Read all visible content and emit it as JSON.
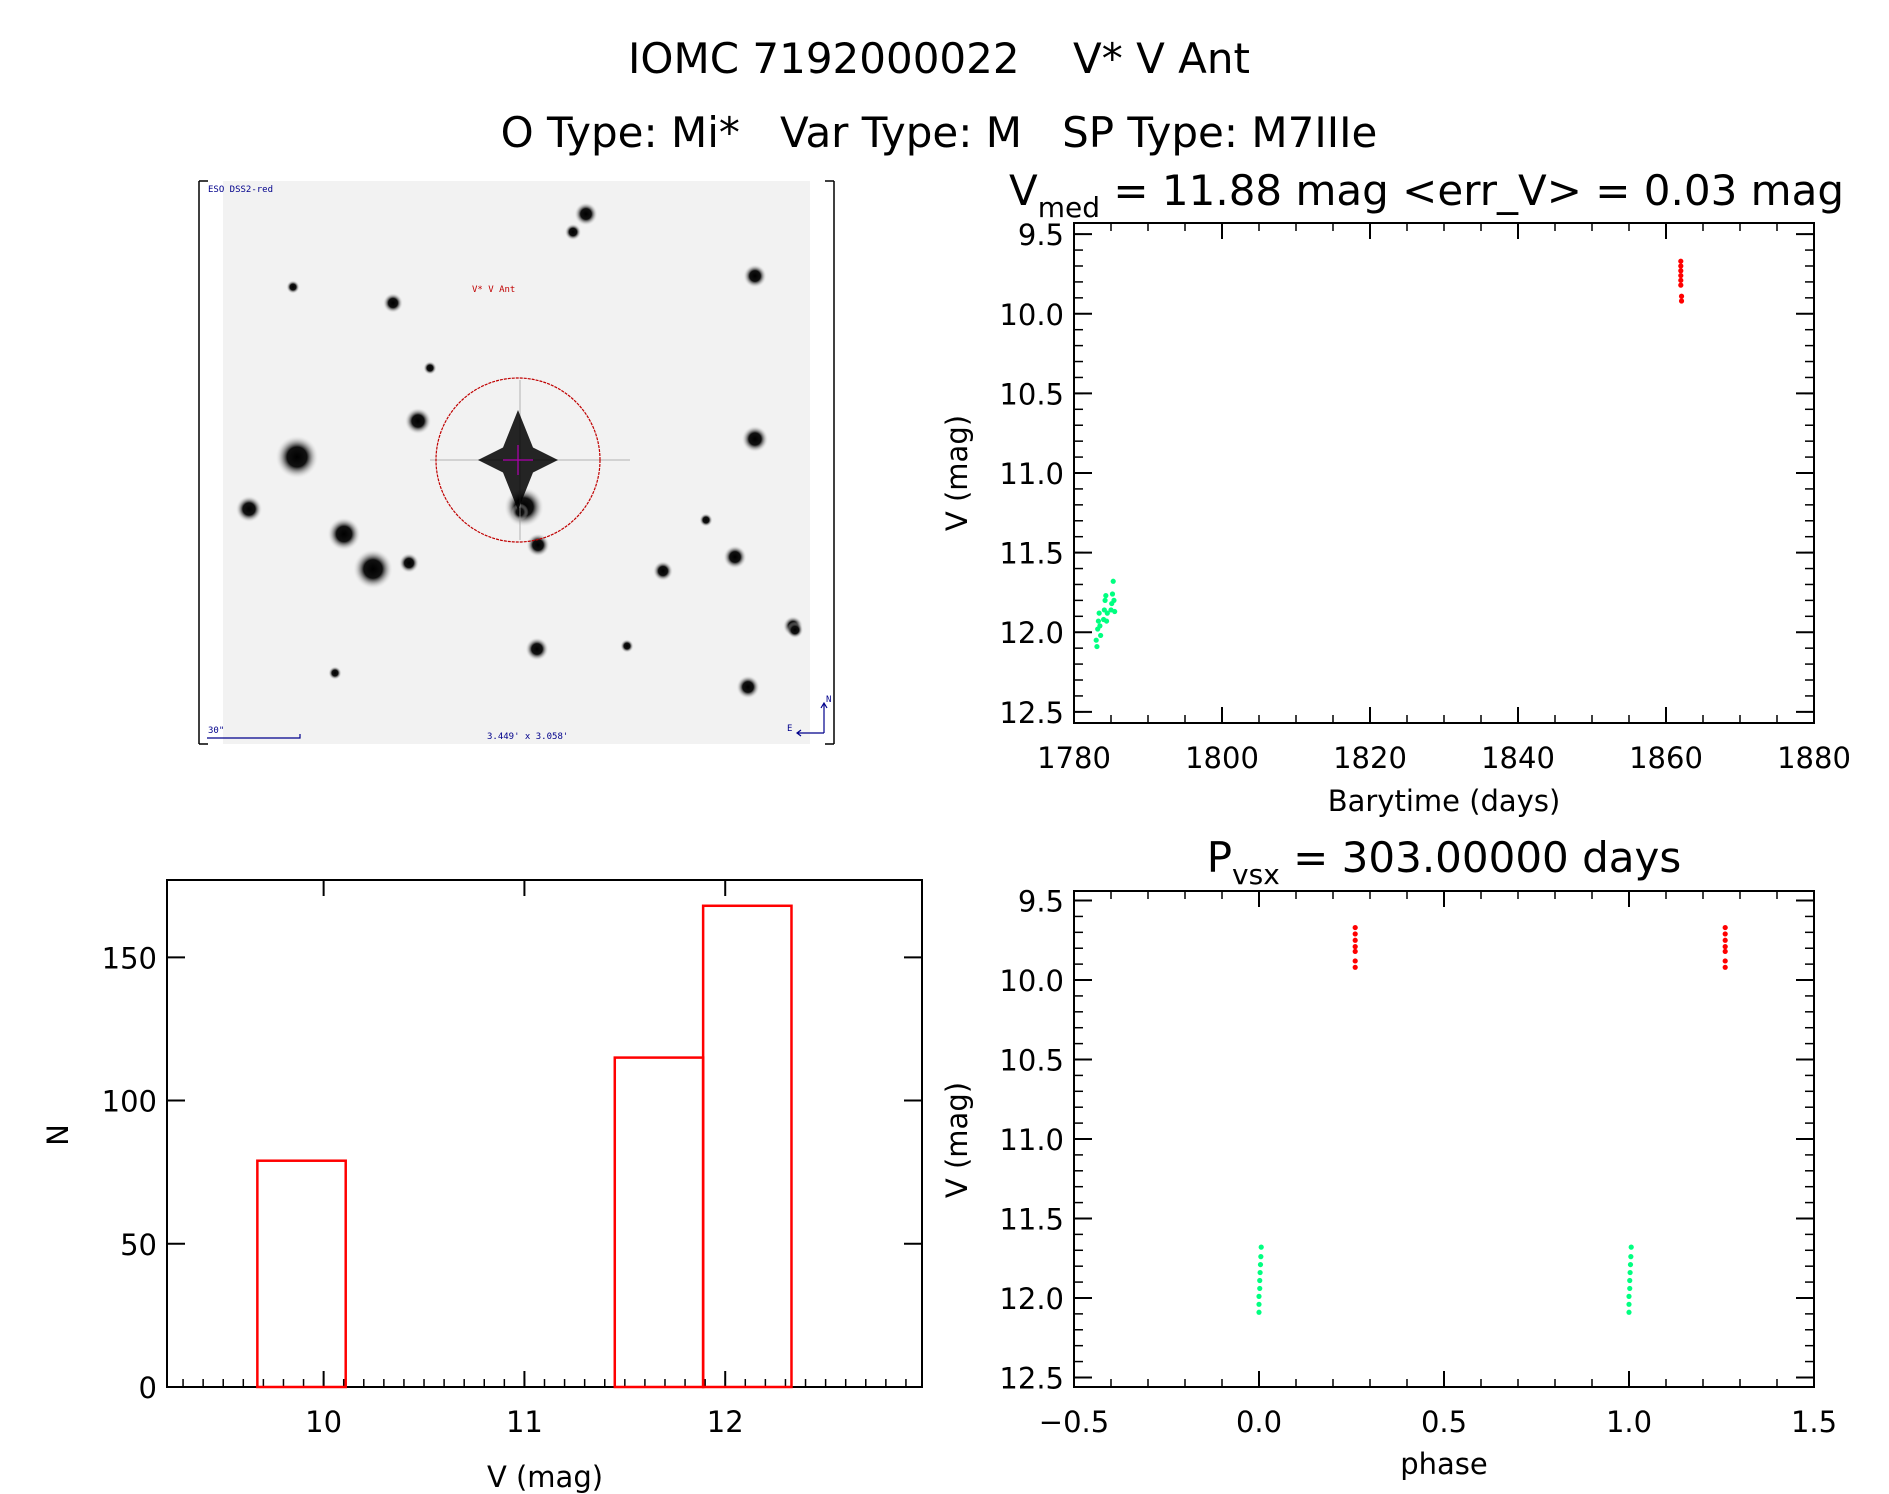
{
  "header": {
    "line1": "IOMC 7192000022    V* V Ant",
    "line2": "O Type: Mi*   Var Type: M   SP Type: M7IIIe"
  },
  "finder_image": {
    "survey": "ESO DSS2-red",
    "target_label": "V* V Ant",
    "scale_label": "30\"",
    "field_size": "3.449' x 3.058'",
    "north_label": "N",
    "east_label": "E",
    "circle_color": "#c00000",
    "text_color": "#00008b"
  },
  "chart_data": [
    {
      "id": "lightcurve",
      "type": "scatter",
      "title_main": "V",
      "title_sub": "med",
      "title_rest": " = 11.88 mag <err_V> = 0.03 mag",
      "xlabel": "Barytime (days)",
      "ylabel": "V (mag)",
      "xlim": [
        1780,
        1880
      ],
      "ylim": [
        12.57,
        9.43
      ],
      "y_reversed": true,
      "xticks": [
        1780,
        1800,
        1820,
        1840,
        1860,
        1880
      ],
      "yticks": [
        "9.5",
        "10.0",
        "10.5",
        "11.0",
        "11.5",
        "12.0",
        "12.5"
      ],
      "grid": false,
      "series": [
        {
          "color": "#00ff80",
          "points": [
            [
              1783.0,
              12.05
            ],
            [
              1783.1,
              12.09
            ],
            [
              1783.2,
              11.98
            ],
            [
              1783.3,
              11.93
            ],
            [
              1783.4,
              11.88
            ],
            [
              1783.5,
              11.96
            ],
            [
              1783.6,
              12.02
            ],
            [
              1784.0,
              11.92
            ],
            [
              1784.1,
              11.86
            ],
            [
              1784.2,
              11.8
            ],
            [
              1784.3,
              11.77
            ],
            [
              1784.4,
              11.93
            ],
            [
              1784.5,
              11.88
            ],
            [
              1785.0,
              11.86
            ],
            [
              1785.1,
              11.82
            ],
            [
              1785.2,
              11.76
            ],
            [
              1785.3,
              11.68
            ],
            [
              1785.4,
              11.8
            ],
            [
              1785.5,
              11.87
            ]
          ]
        },
        {
          "color": "#ff0000",
          "points": [
            [
              1862.0,
              9.67
            ],
            [
              1862.0,
              9.7
            ],
            [
              1862.0,
              9.73
            ],
            [
              1862.0,
              9.76
            ],
            [
              1862.0,
              9.79
            ],
            [
              1862.0,
              9.82
            ],
            [
              1862.1,
              9.89
            ],
            [
              1862.1,
              9.92
            ]
          ]
        }
      ]
    },
    {
      "id": "histogram",
      "type": "bar",
      "xlabel": "V (mag)",
      "ylabel": "N",
      "xlim": [
        9.22,
        12.98
      ],
      "ylim": [
        0,
        177
      ],
      "xticks": [
        10,
        11,
        12
      ],
      "yticks": [
        0,
        50,
        100,
        150
      ],
      "bins": [
        {
          "from": 9.67,
          "to": 10.11,
          "count": 79
        },
        {
          "from": 10.11,
          "to": 10.55,
          "count": 0
        },
        {
          "from": 10.55,
          "to": 11.0,
          "count": 0
        },
        {
          "from": 11.0,
          "to": 11.45,
          "count": 0
        },
        {
          "from": 11.45,
          "to": 11.89,
          "count": 115
        },
        {
          "from": 11.89,
          "to": 12.33,
          "count": 168
        }
      ],
      "color": "#ff0000",
      "grid": false
    },
    {
      "id": "phased",
      "type": "scatter",
      "title_main": "P",
      "title_sub": "vsx",
      "title_rest": " = 303.00000 days",
      "xlabel": "phase",
      "ylabel": "V (mag)",
      "xlim": [
        -0.5,
        1.5
      ],
      "ylim": [
        12.56,
        9.44
      ],
      "y_reversed": true,
      "xticks": [
        "-0.5",
        "0.0",
        "0.5",
        "1.0",
        "1.5"
      ],
      "yticks": [
        "9.5",
        "10.0",
        "10.5",
        "11.0",
        "11.5",
        "12.0",
        "12.5"
      ],
      "grid": false,
      "series": [
        {
          "color": "#00ff80",
          "points": [
            [
              0.0,
              12.09
            ],
            [
              0.0,
              12.04
            ],
            [
              0.0,
              11.99
            ],
            [
              0.002,
              11.94
            ],
            [
              0.002,
              11.89
            ],
            [
              0.003,
              11.84
            ],
            [
              0.004,
              11.79
            ],
            [
              0.005,
              11.74
            ],
            [
              0.006,
              11.68
            ],
            [
              1.0,
              12.09
            ],
            [
              1.0,
              12.04
            ],
            [
              1.0,
              11.99
            ],
            [
              1.002,
              11.94
            ],
            [
              1.002,
              11.89
            ],
            [
              1.003,
              11.84
            ],
            [
              1.004,
              11.79
            ],
            [
              1.005,
              11.74
            ],
            [
              1.006,
              11.68
            ]
          ]
        },
        {
          "color": "#ff0000",
          "points": [
            [
              0.26,
              9.67
            ],
            [
              0.26,
              9.71
            ],
            [
              0.26,
              9.75
            ],
            [
              0.26,
              9.79
            ],
            [
              0.26,
              9.82
            ],
            [
              0.26,
              9.88
            ],
            [
              0.26,
              9.92
            ],
            [
              1.26,
              9.67
            ],
            [
              1.26,
              9.71
            ],
            [
              1.26,
              9.75
            ],
            [
              1.26,
              9.79
            ],
            [
              1.26,
              9.82
            ],
            [
              1.26,
              9.88
            ],
            [
              1.26,
              9.92
            ]
          ]
        }
      ]
    }
  ]
}
